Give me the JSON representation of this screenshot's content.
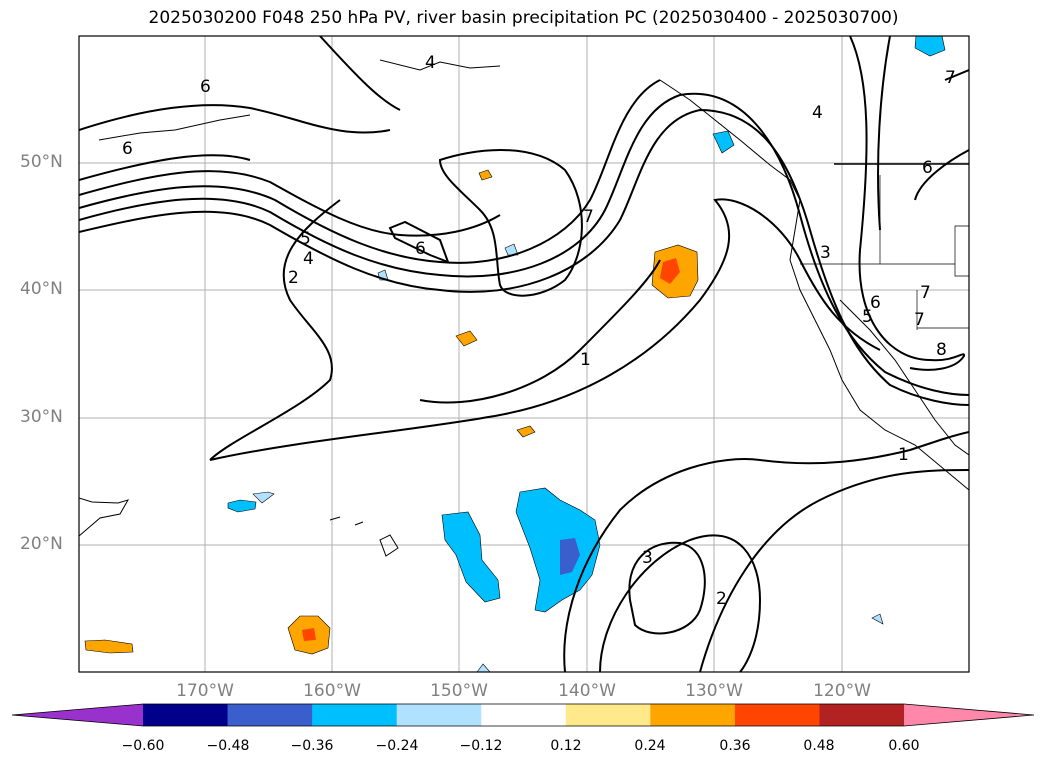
{
  "title": "2025030200 F048 250 hPa PV, river basin precipitation PC (2025030400 - 2025030700)",
  "lat_labels": [
    "50°N",
    "40°N",
    "30°N",
    "20°N"
  ],
  "lon_labels": [
    "170°W",
    "160°W",
    "150°W",
    "140°W",
    "130°W",
    "120°W"
  ],
  "colorbar": {
    "ticks": [
      "−0.60",
      "−0.48",
      "−0.36",
      "−0.24",
      "−0.12",
      "0.12",
      "0.24",
      "0.36",
      "0.48",
      "0.60"
    ],
    "colors": [
      "#9932cc",
      "#00008b",
      "#3a5fcd",
      "#00bfff",
      "#b0e2ff",
      "#ffffff",
      "#ffe98a",
      "#ffa500",
      "#ff4500",
      "#b22222",
      "#ff88aa"
    ]
  },
  "contour_labels": [
    "6",
    "4",
    "6",
    "7",
    "4",
    "6",
    "7",
    "6",
    "5",
    "4",
    "2",
    "7",
    "1",
    "3",
    "6",
    "5",
    "7",
    "8",
    "1",
    "3",
    "2"
  ]
}
